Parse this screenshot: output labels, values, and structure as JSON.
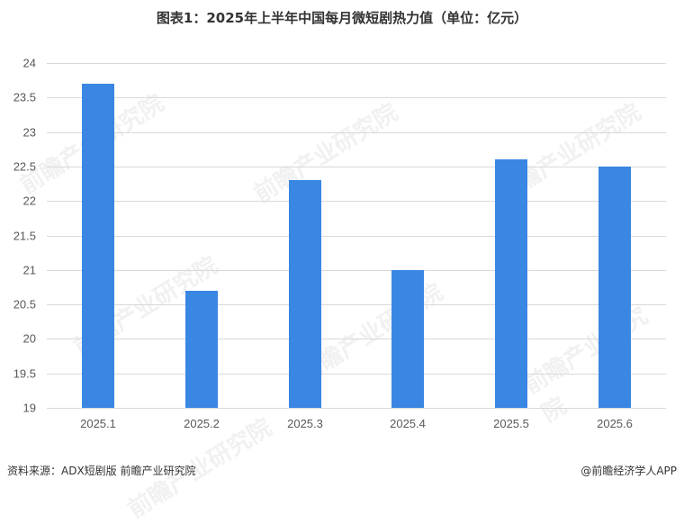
{
  "title": "图表1：2025年上半年中国每月微短剧热力值（单位：亿元）",
  "footer": {
    "source": "资料来源：ADX短剧版  前瞻产业研究院",
    "credit": "@前瞻经济学人APP"
  },
  "watermark": "前瞻产业研究院",
  "colors": {
    "bar": "#3a86e3",
    "grid": "#d9d9d9",
    "text": "#595959"
  },
  "chart_data": {
    "type": "bar",
    "title": "图表1：2025年上半年中国每月微短剧热力值（单位：亿元）",
    "xlabel": "",
    "ylabel": "",
    "categories": [
      "2025.1",
      "2025.2",
      "2025.3",
      "2025.4",
      "2025.5",
      "2025.6"
    ],
    "values": [
      23.7,
      20.7,
      22.3,
      21.0,
      22.6,
      22.5
    ],
    "ylim": [
      19,
      24
    ],
    "yticks": [
      "19",
      "19.5",
      "20",
      "20.5",
      "21",
      "21.5",
      "22",
      "22.5",
      "23",
      "23.5",
      "24"
    ],
    "grid": true,
    "legend": null
  }
}
